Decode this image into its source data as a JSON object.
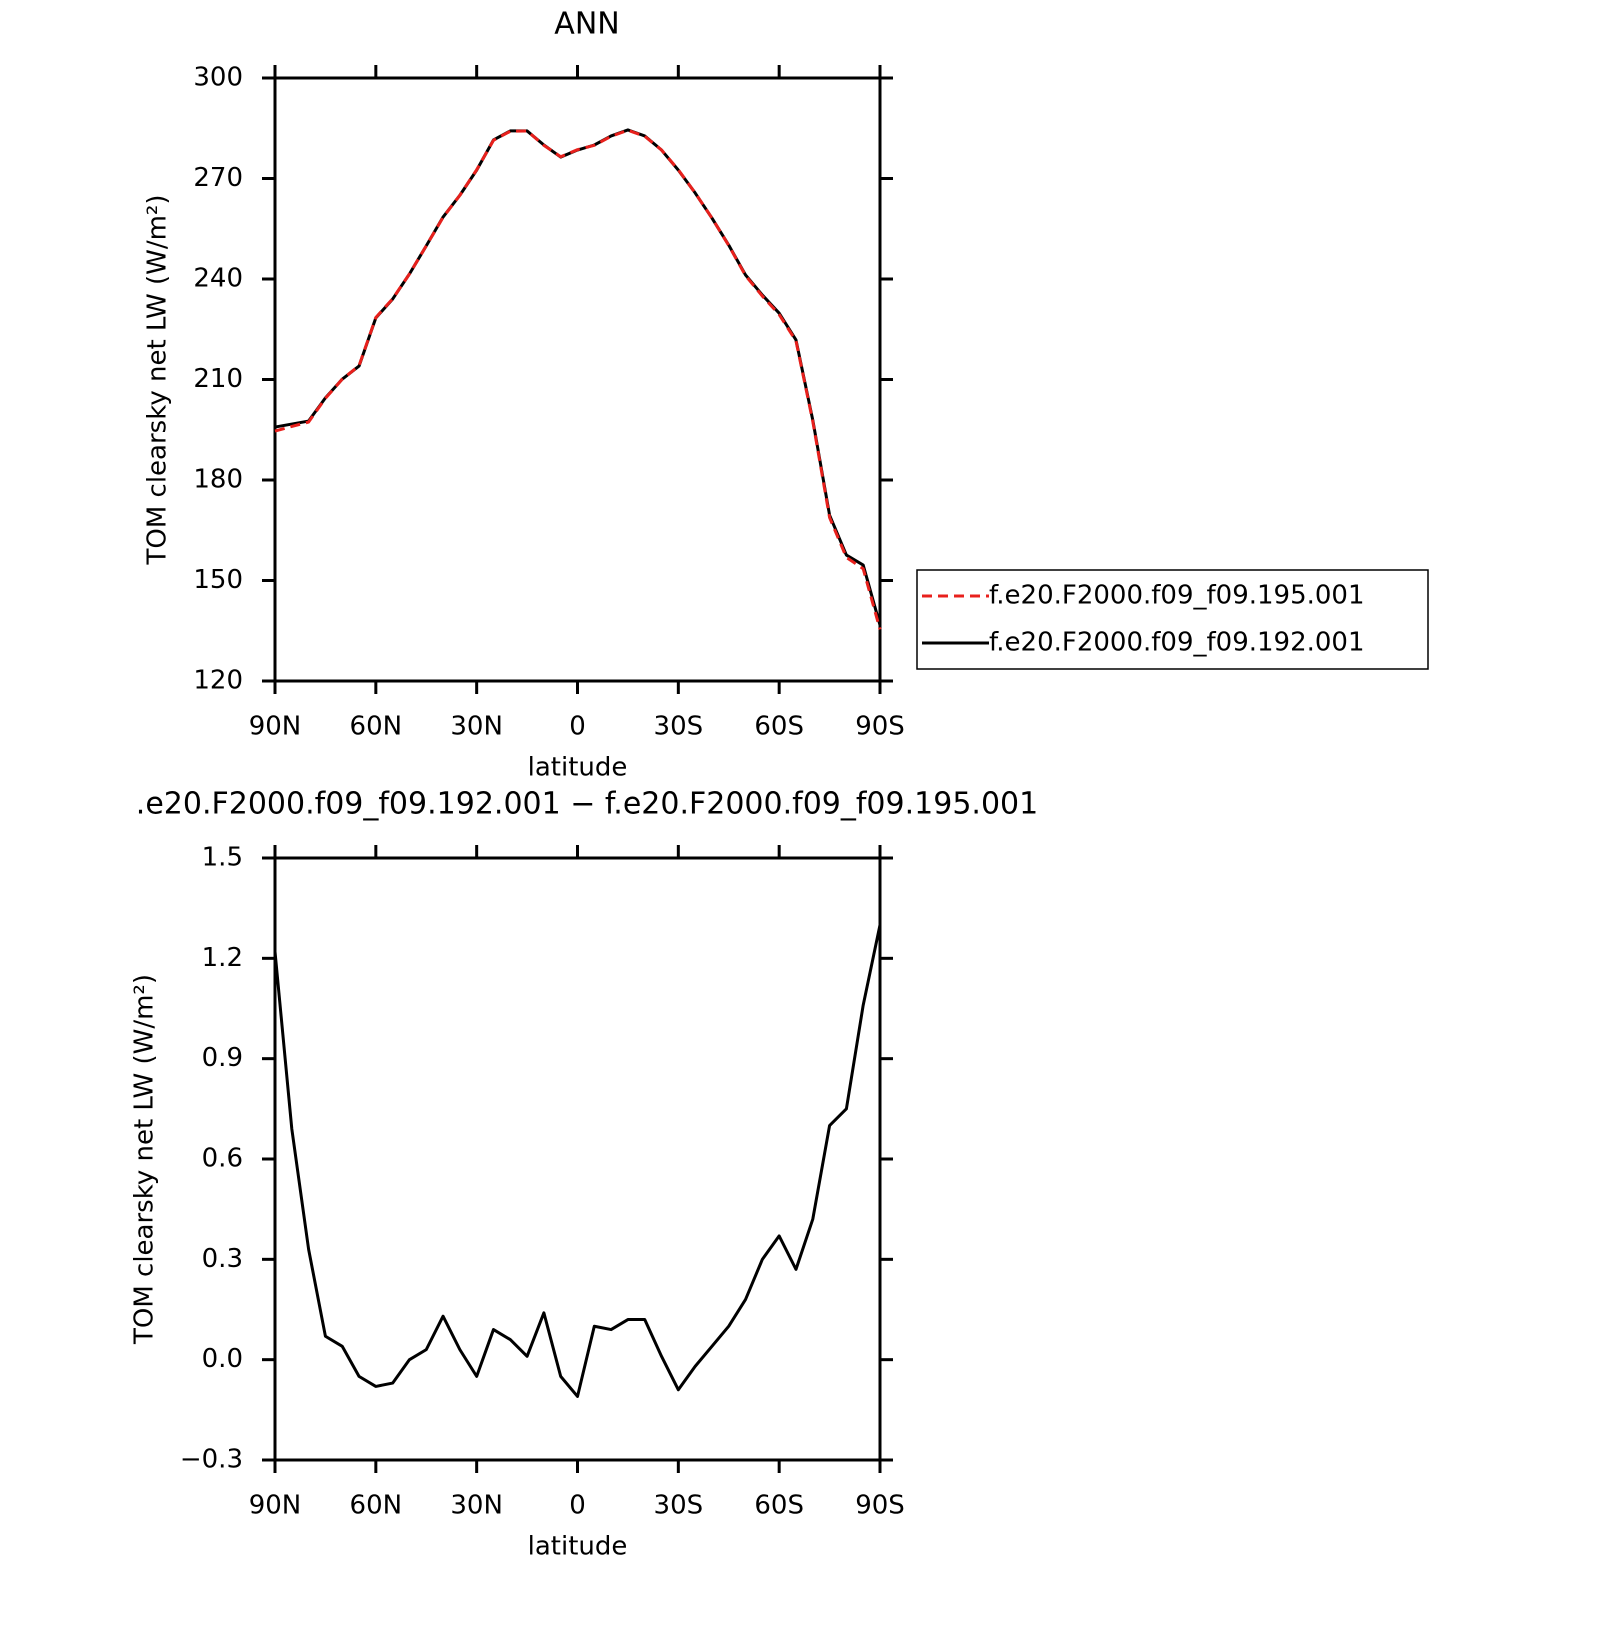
{
  "chart_data": [
    {
      "type": "line",
      "title": "ANN",
      "xlabel": "latitude",
      "ylabel": "TOM clearsky net LW (W/m²)",
      "x": [
        90,
        85,
        80,
        75,
        70,
        65,
        60,
        55,
        50,
        45,
        40,
        35,
        30,
        25,
        20,
        15,
        10,
        5,
        0,
        -5,
        -10,
        -15,
        -20,
        -25,
        -30,
        -35,
        -40,
        -45,
        -50,
        -55,
        -60,
        -65,
        -70,
        -75,
        -80,
        -85,
        -90
      ],
      "series": [
        {
          "name": "f.e20.F2000.f09_f09.195.001",
          "color": "#e8201c",
          "dash": true,
          "values": [
            194.6,
            196.0,
            197.3,
            204.4,
            210.1,
            214.1,
            228.5,
            234.1,
            241.5,
            249.9,
            258.4,
            265.0,
            272.6,
            281.4,
            284.1,
            284.2,
            279.9,
            276.5,
            278.6,
            279.9,
            282.6,
            284.4,
            282.6,
            278.5,
            272.6,
            265.7,
            258.2,
            250.0,
            241.0,
            234.9,
            229.4,
            221.5,
            197.5,
            168.8,
            156.9,
            153.5,
            135.4
          ]
        },
        {
          "name": "f.e20.F2000.f09_f09.192.001",
          "color": "#000000",
          "dash": false,
          "values": [
            195.8,
            196.7,
            197.6,
            204.5,
            210.1,
            214.0,
            228.4,
            234.0,
            241.5,
            249.9,
            258.5,
            265.0,
            272.5,
            281.5,
            284.2,
            284.2,
            280.0,
            276.4,
            278.5,
            280.0,
            282.7,
            284.5,
            282.7,
            278.5,
            272.5,
            265.7,
            258.2,
            250.1,
            241.2,
            235.2,
            229.8,
            221.8,
            197.9,
            169.5,
            157.6,
            154.6,
            136.7
          ]
        }
      ],
      "xlim": [
        90,
        -90
      ],
      "xticks": [
        {
          "value": 90,
          "label": "90N"
        },
        {
          "value": 60,
          "label": "60N"
        },
        {
          "value": 30,
          "label": "30N"
        },
        0,
        {
          "value": -30,
          "label": "30S"
        },
        {
          "value": -60,
          "label": "60S"
        },
        {
          "value": -90,
          "label": "90S"
        }
      ],
      "ylim": [
        120,
        300
      ],
      "yticks": [
        120,
        150,
        180,
        210,
        240,
        270,
        300
      ],
      "legend": "right"
    },
    {
      "type": "line",
      "title": ".e20.F2000.f09_f09.192.001 − f.e20.F2000.f09_f09.195.001",
      "xlabel": "latitude",
      "ylabel": "TOM clearsky net LW (W/m²)",
      "x": [
        90,
        85,
        80,
        75,
        70,
        65,
        60,
        55,
        50,
        45,
        40,
        35,
        30,
        25,
        20,
        15,
        10,
        5,
        0,
        -5,
        -10,
        -15,
        -20,
        -25,
        -30,
        -35,
        -40,
        -45,
        -50,
        -55,
        -60,
        -65,
        -70,
        -75,
        -80,
        -85,
        -90
      ],
      "color": "#000000",
      "values": [
        1.22,
        0.69,
        0.33,
        0.07,
        0.04,
        -0.05,
        -0.08,
        -0.07,
        0.0,
        0.03,
        0.13,
        0.03,
        -0.05,
        0.09,
        0.06,
        0.01,
        0.14,
        -0.05,
        -0.11,
        0.1,
        0.09,
        0.12,
        0.12,
        0.01,
        -0.09,
        -0.02,
        0.04,
        0.1,
        0.18,
        0.3,
        0.37,
        0.27,
        0.42,
        0.7,
        0.75,
        1.06,
        1.3
      ],
      "xlim": [
        90,
        -90
      ],
      "xticks": [
        {
          "value": 90,
          "label": "90N"
        },
        {
          "value": 60,
          "label": "60N"
        },
        {
          "value": 30,
          "label": "30N"
        },
        0,
        {
          "value": -30,
          "label": "30S"
        },
        {
          "value": -60,
          "label": "60S"
        },
        {
          "value": -90,
          "label": "90S"
        }
      ],
      "ylim": [
        -0.3,
        1.5
      ],
      "yticks": [
        {
          "value": -0.3,
          "label": "−0.3"
        },
        {
          "value": 0,
          "label": "0.0"
        },
        0.3,
        0.6,
        0.9,
        1.2,
        1.5
      ]
    }
  ]
}
